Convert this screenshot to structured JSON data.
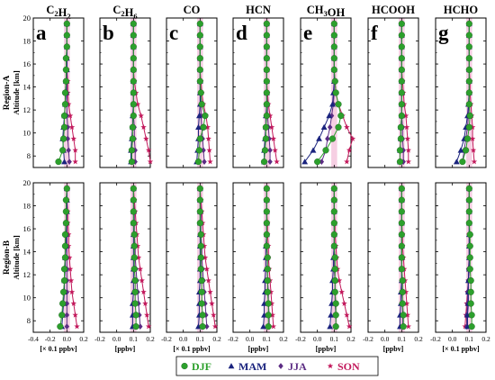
{
  "chart_data": {
    "type": "line",
    "columns": [
      {
        "species": "C",
        "sub": "2",
        "mid": "H",
        "sub2": "2",
        "tail": "",
        "letter": "a"
      },
      {
        "species": "C",
        "sub": "2",
        "mid": "H",
        "sub2": "6",
        "tail": "",
        "letter": "b"
      },
      {
        "species": "CO",
        "sub": "",
        "mid": "",
        "sub2": "",
        "tail": "",
        "letter": "c"
      },
      {
        "species": "HCN",
        "sub": "",
        "mid": "",
        "sub2": "",
        "tail": "",
        "letter": "d"
      },
      {
        "species": "CH",
        "sub": "3",
        "mid": "OH",
        "sub2": "",
        "tail": "",
        "letter": "e"
      },
      {
        "species": "HCOOH",
        "sub": "",
        "mid": "",
        "sub2": "",
        "tail": "",
        "letter": "f"
      },
      {
        "species": "HCHO",
        "sub": "",
        "mid": "",
        "sub2": "",
        "tail": "",
        "letter": "g"
      }
    ],
    "units": [
      "[× 0.1 ppbv]",
      "[ppbv]",
      "[× 0.1 ppbv]",
      "[ppbv]",
      "[ppbv]",
      "[ppbv]",
      "[× 0.1 ppbv]"
    ],
    "rows": [
      {
        "region": "Region-A",
        "ylabel": "Altitude [km]"
      },
      {
        "region": "Region-B",
        "ylabel": "Altitude [km]"
      }
    ],
    "xlim": [
      -0.4,
      0.2
    ],
    "ylim": [
      7,
      20
    ],
    "xticks": [
      -0.4,
      -0.2,
      0.0,
      0.2
    ],
    "xtick_labels": [
      "-0.4",
      "-0.2",
      "0.0",
      "0.2"
    ],
    "xtick_labels_inner": [
      "-0.2",
      "0.0",
      "0.1",
      "0.2"
    ],
    "yticks": [
      8,
      10,
      12,
      14,
      16,
      18,
      20
    ],
    "y": [
      7.5,
      8.5,
      9.5,
      10.5,
      11.5,
      12.5,
      13.5,
      14.5,
      15.5,
      16.5,
      17.5,
      18.5,
      19.5
    ],
    "legend": [
      {
        "name": "DJF",
        "color": "#2ca02c",
        "marker": "circle"
      },
      {
        "name": "MAM",
        "color": "#1a237e",
        "marker": "triangle"
      },
      {
        "name": "JJA",
        "color": "#5b2c83",
        "marker": "diamond"
      },
      {
        "name": "SON",
        "color": "#c2185b",
        "marker": "star"
      }
    ],
    "panels": [
      [
        {
          "DJF": [
            -0.1,
            -0.05,
            -0.04,
            -0.03,
            -0.03,
            -0.02,
            -0.02,
            -0.01,
            -0.01,
            -0.01,
            0,
            0,
            0
          ],
          "MAM": [
            -0.03,
            -0.04,
            -0.05,
            -0.04,
            -0.03,
            -0.02,
            -0.01,
            -0.01,
            0,
            0,
            0,
            0,
            0
          ],
          "JJA": [
            0.03,
            0.02,
            0.01,
            0.01,
            0,
            0,
            0,
            0,
            0,
            0,
            0,
            0,
            0
          ],
          "SON": [
            0.1,
            0.1,
            0.08,
            0.06,
            0.04,
            0.02,
            0.01,
            0.01,
            0,
            0,
            0,
            0,
            0
          ]
        },
        {
          "DJF": [
            -0.02,
            -0.02,
            -0.01,
            -0.01,
            0,
            0,
            0,
            0,
            0,
            0,
            0,
            0,
            0
          ],
          "MAM": [
            -0.03,
            -0.03,
            -0.02,
            -0.01,
            -0.01,
            0,
            0,
            0,
            0,
            0,
            0,
            0,
            0
          ],
          "JJA": [
            0.02,
            0.02,
            0.01,
            0.01,
            0,
            0,
            0,
            0,
            0,
            0,
            0,
            0,
            0
          ],
          "SON": [
            0.2,
            0.18,
            0.15,
            0.12,
            0.09,
            0.05,
            0.03,
            0.01,
            0,
            0,
            0,
            0,
            0
          ]
        },
        {
          "DJF": [
            -0.02,
            -0.01,
            0,
            0.04,
            0.06,
            0.02,
            0.01,
            0,
            0,
            0,
            0,
            0,
            0
          ],
          "MAM": [
            -0.04,
            -0.03,
            -0.02,
            -0.02,
            -0.01,
            0,
            0,
            0,
            0,
            0,
            0,
            0,
            0
          ],
          "JJA": [
            0.05,
            0.04,
            0.03,
            0.02,
            0.01,
            0.01,
            0,
            0,
            0,
            0,
            0,
            0,
            0
          ],
          "SON": [
            0.12,
            0.11,
            0.1,
            0.09,
            0.07,
            0.04,
            0.02,
            0.01,
            0,
            0,
            0,
            0,
            0
          ]
        },
        {
          "DJF": [
            -0.03,
            -0.02,
            -0.01,
            -0.01,
            0,
            0,
            0,
            0,
            0,
            0,
            0,
            0,
            0
          ],
          "MAM": [
            -0.03,
            -0.03,
            -0.02,
            -0.01,
            -0.01,
            0,
            0,
            0,
            0,
            0,
            0,
            0,
            0
          ],
          "JJA": [
            0.04,
            0.04,
            0.03,
            0.02,
            0.01,
            0.01,
            0,
            0,
            0,
            0,
            0,
            0,
            0
          ],
          "SON": [
            0.12,
            0.1,
            0.08,
            0.06,
            0.04,
            0.02,
            0.01,
            0,
            0,
            0,
            0,
            0,
            0
          ]
        },
        {
          "DJF": [
            -0.2,
            -0.1,
            -0.02,
            0.05,
            0.08,
            0.05,
            0.02,
            0.01,
            0,
            0,
            0,
            0,
            0
          ],
          "MAM": [
            -0.35,
            -0.25,
            -0.18,
            -0.12,
            -0.06,
            -0.02,
            -0.01,
            0,
            0,
            0,
            0,
            0,
            0
          ],
          "JJA": [
            -0.15,
            -0.1,
            -0.08,
            -0.05,
            -0.03,
            -0.01,
            0,
            0,
            0,
            0,
            0,
            0,
            0
          ],
          "SON": [
            0.15,
            0.18,
            0.22,
            0.15,
            0.1,
            0.05,
            0.02,
            0.01,
            0,
            0,
            0,
            0,
            0
          ]
        },
        {
          "DJF": [
            -0.02,
            -0.02,
            -0.01,
            -0.01,
            0,
            0,
            0,
            0,
            0,
            0,
            0,
            0,
            0
          ],
          "MAM": [
            -0.02,
            -0.02,
            -0.01,
            -0.01,
            0,
            0,
            0,
            0,
            0,
            0,
            0,
            0,
            0
          ],
          "JJA": [
            0.02,
            0.02,
            0.01,
            0.01,
            0,
            0,
            0,
            0,
            0,
            0,
            0,
            0,
            0
          ],
          "SON": [
            0.08,
            0.08,
            0.07,
            0.06,
            0.05,
            0.03,
            0.02,
            0.01,
            0,
            0,
            0,
            0,
            0
          ]
        },
        {
          "DJF": [
            -0.08,
            -0.04,
            -0.02,
            0,
            0.01,
            0,
            0,
            0,
            0,
            0,
            0,
            0,
            0
          ],
          "MAM": [
            -0.15,
            -0.1,
            -0.06,
            -0.04,
            -0.02,
            -0.01,
            0,
            0,
            0,
            0,
            0,
            0,
            0
          ],
          "JJA": [
            -0.08,
            -0.06,
            -0.04,
            -0.02,
            -0.01,
            0,
            0,
            0,
            0,
            0,
            0,
            0,
            0
          ],
          "SON": [
            0.06,
            0.05,
            0.04,
            0.04,
            0.03,
            0.02,
            0.01,
            0.01,
            0,
            0,
            0,
            0,
            0
          ]
        }
      ],
      [
        {
          "DJF": [
            -0.08,
            -0.06,
            -0.05,
            -0.04,
            -0.03,
            -0.03,
            -0.02,
            -0.02,
            -0.02,
            -0.01,
            -0.01,
            -0.01,
            0
          ],
          "MAM": [
            -0.06,
            -0.05,
            -0.04,
            -0.03,
            -0.03,
            -0.02,
            -0.02,
            -0.01,
            -0.01,
            -0.01,
            0,
            0,
            0
          ],
          "JJA": [
            0,
            0,
            0,
            0,
            0,
            0,
            0,
            0,
            0,
            0,
            0,
            0,
            0
          ],
          "SON": [
            0.12,
            0.1,
            0.08,
            0.06,
            0.05,
            0.04,
            0.03,
            0.02,
            0.02,
            0.01,
            0.01,
            0,
            0
          ]
        },
        {
          "DJF": [
            0.03,
            0.03,
            0.02,
            0.02,
            0.02,
            0.01,
            0.01,
            0.01,
            0.01,
            0,
            0,
            0,
            0
          ],
          "MAM": [
            -0.01,
            -0.01,
            -0.01,
            0,
            0,
            0,
            0,
            0,
            0,
            0,
            0,
            0,
            0
          ],
          "JJA": [
            0.08,
            0.07,
            0.06,
            0.05,
            0.04,
            0.03,
            0.02,
            0.02,
            0.01,
            0.01,
            0.01,
            0,
            0
          ],
          "SON": [
            0.18,
            0.16,
            0.14,
            0.12,
            0.1,
            0.08,
            0.06,
            0.05,
            0.04,
            0.03,
            0.02,
            0.01,
            0
          ]
        },
        {
          "DJF": [
            0.03,
            0.03,
            0.02,
            0.02,
            0.02,
            0.01,
            0.01,
            0.01,
            0.01,
            0,
            0,
            0,
            0
          ],
          "MAM": [
            -0.02,
            -0.01,
            -0.01,
            -0.01,
            0,
            0,
            0,
            0,
            0,
            0,
            0,
            0,
            0
          ],
          "JJA": [
            0.08,
            0.07,
            0.06,
            0.05,
            0.04,
            0.03,
            0.02,
            0.02,
            0.01,
            0.01,
            0.01,
            0,
            0
          ],
          "SON": [
            0.18,
            0.16,
            0.14,
            0.12,
            0.1,
            0.08,
            0.06,
            0.05,
            0.04,
            0.03,
            0.02,
            0.01,
            0
          ]
        },
        {
          "DJF": [
            0.02,
            0.02,
            0.02,
            0.01,
            0.01,
            0.01,
            0.01,
            0,
            0,
            0,
            0,
            0,
            0
          ],
          "MAM": [
            -0.04,
            -0.03,
            -0.03,
            -0.02,
            -0.02,
            -0.01,
            -0.01,
            -0.01,
            0,
            0,
            0,
            0,
            0
          ],
          "JJA": [
            0.03,
            0.03,
            0.02,
            0.02,
            0.01,
            0.01,
            0.01,
            0,
            0,
            0,
            0,
            0,
            0
          ],
          "SON": [
            0.08,
            0.07,
            0.06,
            0.05,
            0.04,
            0.03,
            0.02,
            0.02,
            0.01,
            0.01,
            0,
            0,
            0
          ]
        },
        {
          "DJF": [
            0.02,
            0.02,
            0.02,
            0.01,
            0.01,
            0.01,
            0.01,
            0,
            0,
            0,
            0,
            0,
            0
          ],
          "MAM": [
            -0.05,
            -0.04,
            -0.03,
            -0.02,
            -0.02,
            -0.01,
            -0.01,
            0,
            0,
            0,
            0,
            0,
            0
          ],
          "JJA": [
            0.02,
            0.02,
            0.01,
            0.01,
            0.01,
            0,
            0,
            0,
            0,
            0,
            0,
            0,
            0
          ],
          "SON": [
            0.18,
            0.15,
            0.12,
            0.09,
            0.06,
            0.04,
            0.03,
            0.02,
            0.01,
            0.01,
            0,
            0,
            0
          ]
        },
        {
          "DJF": [
            0.02,
            0.02,
            0.01,
            0.01,
            0.01,
            0,
            0,
            0,
            0,
            0,
            0,
            0,
            0
          ],
          "MAM": [
            -0.02,
            -0.02,
            -0.01,
            -0.01,
            0,
            0,
            0,
            0,
            0,
            0,
            0,
            0,
            0
          ],
          "JJA": [
            0.01,
            0.01,
            0.01,
            0,
            0,
            0,
            0,
            0,
            0,
            0,
            0,
            0,
            0
          ],
          "SON": [
            0.08,
            0.07,
            0.06,
            0.05,
            0.04,
            0.03,
            0.02,
            0.01,
            0.01,
            0,
            0,
            0,
            0
          ]
        },
        {
          "DJF": [
            0.03,
            0.03,
            0.02,
            0.02,
            0.02,
            0.01,
            0.01,
            0.01,
            0.01,
            0,
            0,
            0,
            0
          ],
          "MAM": [
            -0.02,
            -0.02,
            -0.01,
            -0.01,
            -0.01,
            0,
            0,
            0,
            0,
            0,
            0,
            0,
            0
          ],
          "JJA": [
            -0.03,
            -0.03,
            -0.02,
            -0.02,
            -0.01,
            -0.01,
            0,
            0,
            0,
            0,
            0,
            0,
            0
          ],
          "SON": [
            -0.05,
            -0.04,
            -0.03,
            -0.02,
            -0.01,
            0,
            0,
            0,
            0,
            0,
            0,
            0,
            0
          ]
        }
      ]
    ]
  }
}
